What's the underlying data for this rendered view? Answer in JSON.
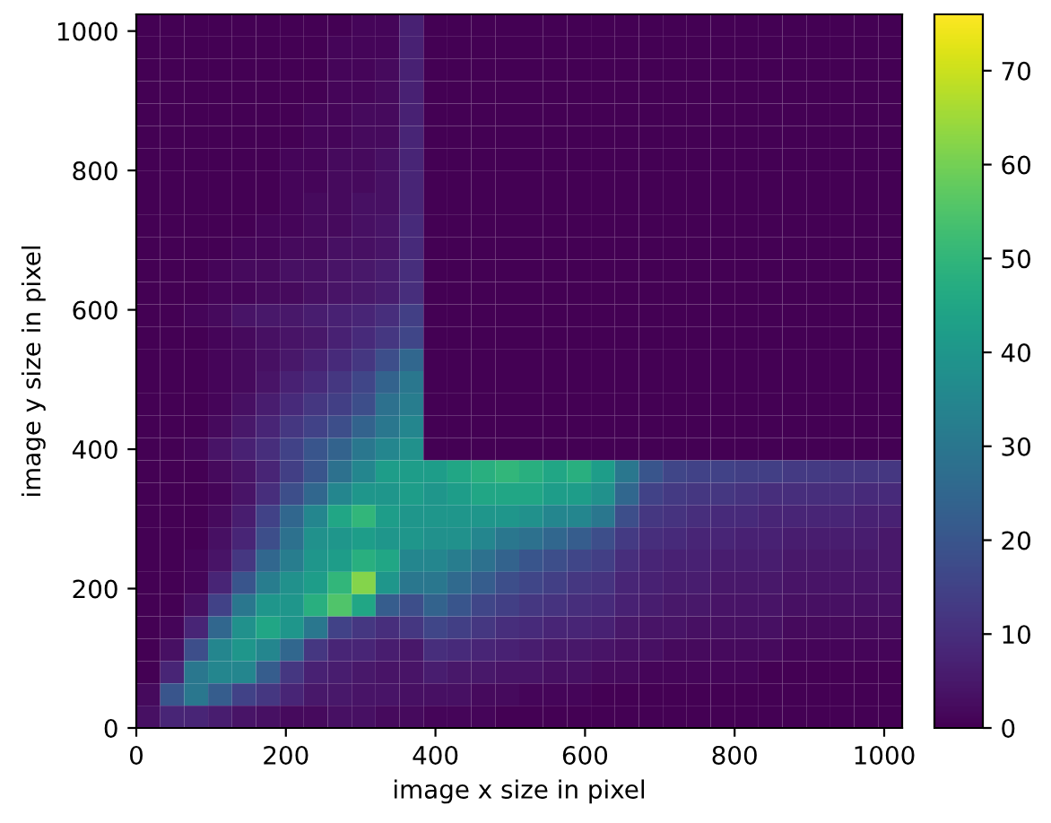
{
  "chart_data": {
    "type": "heatmap",
    "xlabel": "image x size in pixel",
    "ylabel": "image y size in pixel",
    "xlim": [
      0,
      1024
    ],
    "ylim": [
      0,
      1024
    ],
    "xticks": [
      0,
      200,
      400,
      600,
      800,
      1000
    ],
    "yticks": [
      0,
      200,
      400,
      600,
      800,
      1000
    ],
    "clim": [
      0,
      76
    ],
    "cticks": [
      0,
      10,
      20,
      30,
      40,
      50,
      60,
      70
    ],
    "cells": [
      [
        0,
        0,
        0,
        0,
        0,
        0,
        0,
        0,
        0,
        1,
        1,
        7,
        0,
        0,
        0,
        0,
        0,
        0,
        0,
        0,
        0,
        0,
        0,
        0,
        0,
        0,
        0,
        0,
        0,
        0,
        0,
        0
      ],
      [
        0,
        0,
        0,
        0,
        0,
        0,
        0,
        0,
        1,
        1,
        1,
        7,
        0,
        0,
        0,
        0,
        0,
        0,
        0,
        0,
        0,
        0,
        0,
        0,
        0,
        0,
        0,
        0,
        0,
        0,
        0,
        0
      ],
      [
        0,
        0,
        0,
        0,
        0,
        0,
        0,
        0,
        1,
        1,
        2,
        7,
        0,
        0,
        0,
        0,
        0,
        0,
        0,
        0,
        0,
        0,
        0,
        0,
        0,
        0,
        0,
        0,
        0,
        0,
        0,
        0
      ],
      [
        0,
        0,
        0,
        0,
        0,
        0,
        0,
        0,
        1,
        1,
        2,
        7,
        0,
        0,
        0,
        0,
        0,
        0,
        0,
        0,
        0,
        0,
        0,
        0,
        0,
        0,
        0,
        0,
        0,
        0,
        0,
        0
      ],
      [
        0,
        0,
        0,
        0,
        0,
        0,
        0,
        1,
        1,
        2,
        2,
        7,
        0,
        0,
        0,
        0,
        0,
        0,
        0,
        0,
        0,
        0,
        0,
        0,
        0,
        0,
        0,
        0,
        0,
        0,
        0,
        0
      ],
      [
        0,
        0,
        0,
        0,
        0,
        0,
        0,
        1,
        1,
        2,
        2,
        8,
        0,
        0,
        0,
        0,
        0,
        0,
        0,
        0,
        0,
        0,
        0,
        0,
        0,
        0,
        0,
        0,
        0,
        0,
        0,
        0
      ],
      [
        0,
        0,
        0,
        0,
        0,
        0,
        1,
        1,
        2,
        2,
        3,
        8,
        0,
        0,
        0,
        0,
        0,
        0,
        0,
        0,
        0,
        0,
        0,
        0,
        0,
        0,
        0,
        0,
        0,
        0,
        0,
        0
      ],
      [
        0,
        0,
        0,
        0,
        0,
        0,
        1,
        1,
        2,
        2,
        3,
        8,
        0,
        0,
        0,
        0,
        0,
        0,
        0,
        0,
        0,
        0,
        0,
        0,
        0,
        0,
        0,
        0,
        0,
        0,
        0,
        0
      ],
      [
        0,
        0,
        0,
        0,
        0,
        0,
        1,
        2,
        2,
        3,
        3,
        8,
        0,
        0,
        0,
        0,
        0,
        0,
        0,
        0,
        0,
        0,
        0,
        0,
        0,
        0,
        0,
        0,
        0,
        0,
        0,
        0
      ],
      [
        0,
        0,
        0,
        0,
        0,
        1,
        1,
        2,
        2,
        3,
        4,
        9,
        0,
        0,
        0,
        0,
        0,
        0,
        0,
        0,
        0,
        0,
        0,
        0,
        0,
        0,
        0,
        0,
        0,
        0,
        0,
        0
      ],
      [
        0,
        0,
        0,
        0,
        1,
        1,
        2,
        2,
        3,
        3,
        4,
        9,
        0,
        0,
        0,
        0,
        0,
        0,
        0,
        0,
        0,
        0,
        0,
        0,
        0,
        0,
        0,
        0,
        0,
        0,
        0,
        0
      ],
      [
        0,
        0,
        0,
        1,
        2,
        2,
        3,
        3,
        4,
        5,
        6,
        10,
        0,
        0,
        0,
        0,
        0,
        0,
        0,
        0,
        0,
        0,
        0,
        0,
        0,
        0,
        0,
        0,
        0,
        0,
        0,
        0
      ],
      [
        0,
        0,
        0,
        1,
        1,
        2,
        2,
        3,
        4,
        5,
        6,
        10,
        0,
        0,
        0,
        0,
        0,
        0,
        0,
        0,
        0,
        0,
        0,
        0,
        0,
        0,
        0,
        0,
        0,
        0,
        0,
        0
      ],
      [
        0,
        0,
        1,
        2,
        4,
        5,
        5,
        6,
        7,
        8,
        10,
        14,
        0,
        0,
        0,
        0,
        0,
        0,
        0,
        0,
        0,
        0,
        0,
        0,
        0,
        0,
        0,
        0,
        0,
        0,
        0,
        0
      ],
      [
        0,
        0,
        0,
        1,
        2,
        3,
        4,
        5,
        7,
        9,
        12,
        16,
        0,
        0,
        0,
        0,
        0,
        0,
        0,
        0,
        0,
        0,
        0,
        0,
        0,
        0,
        0,
        0,
        0,
        0,
        0,
        0
      ],
      [
        0,
        0,
        0,
        1,
        2,
        3,
        5,
        7,
        9,
        12,
        18,
        25,
        0,
        0,
        0,
        0,
        0,
        0,
        0,
        0,
        0,
        0,
        0,
        0,
        0,
        0,
        0,
        0,
        0,
        0,
        0,
        0
      ],
      [
        0,
        0,
        0,
        1,
        2,
        4,
        7,
        9,
        12,
        16,
        24,
        30,
        0,
        0,
        0,
        0,
        0,
        0,
        0,
        0,
        0,
        0,
        0,
        0,
        0,
        0,
        0,
        0,
        0,
        0,
        0,
        0
      ],
      [
        0,
        0,
        0,
        1,
        3,
        6,
        9,
        12,
        14,
        18,
        28,
        32,
        0,
        0,
        0,
        0,
        0,
        0,
        0,
        0,
        0,
        0,
        0,
        0,
        0,
        0,
        0,
        0,
        0,
        0,
        0,
        0
      ],
      [
        0,
        0,
        0,
        2,
        5,
        8,
        12,
        15,
        18,
        24,
        30,
        35,
        0,
        0,
        0,
        0,
        0,
        0,
        0,
        0,
        0,
        0,
        0,
        0,
        0,
        0,
        0,
        0,
        0,
        0,
        0,
        0
      ],
      [
        0,
        0,
        1,
        4,
        7,
        10,
        15,
        20,
        24,
        30,
        35,
        38,
        0,
        0,
        0,
        0,
        0,
        0,
        0,
        0,
        0,
        0,
        0,
        0,
        0,
        0,
        0,
        0,
        0,
        0,
        0,
        0
      ],
      [
        0,
        0,
        0,
        2,
        4,
        8,
        14,
        20,
        28,
        35,
        42,
        42,
        42,
        45,
        48,
        50,
        48,
        45,
        48,
        42,
        30,
        20,
        16,
        15,
        15,
        14,
        14,
        13,
        13,
        12,
        12,
        12
      ],
      [
        0,
        0,
        0,
        1,
        4,
        10,
        18,
        25,
        35,
        40,
        40,
        42,
        40,
        42,
        45,
        45,
        45,
        42,
        42,
        38,
        25,
        15,
        13,
        12,
        12,
        11,
        10,
        10,
        10,
        10,
        9,
        9
      ],
      [
        0,
        0,
        0,
        2,
        6,
        15,
        25,
        35,
        45,
        50,
        42,
        40,
        40,
        40,
        40,
        40,
        38,
        35,
        35,
        30,
        18,
        12,
        11,
        10,
        9,
        9,
        8,
        8,
        8,
        8,
        7,
        7
      ],
      [
        0,
        0,
        0,
        3,
        8,
        18,
        28,
        38,
        40,
        42,
        40,
        40,
        38,
        38,
        35,
        30,
        28,
        25,
        22,
        18,
        13,
        10,
        9,
        8,
        8,
        7,
        7,
        6,
        6,
        6,
        6,
        5
      ],
      [
        0,
        0,
        1,
        4,
        12,
        25,
        32,
        40,
        42,
        48,
        45,
        35,
        35,
        32,
        28,
        24,
        20,
        18,
        16,
        14,
        10,
        8,
        7,
        7,
        6,
        6,
        6,
        5,
        5,
        5,
        5,
        5
      ],
      [
        0,
        0,
        1,
        8,
        20,
        32,
        38,
        42,
        50,
        62,
        40,
        30,
        30,
        26,
        22,
        18,
        16,
        14,
        12,
        11,
        8,
        7,
        6,
        6,
        5,
        5,
        5,
        4,
        4,
        4,
        4,
        4
      ],
      [
        0,
        0,
        3,
        15,
        30,
        40,
        40,
        48,
        55,
        45,
        22,
        18,
        24,
        20,
        16,
        14,
        12,
        11,
        10,
        9,
        7,
        6,
        5,
        5,
        4,
        4,
        4,
        3,
        3,
        3,
        3,
        3
      ],
      [
        0,
        1,
        8,
        25,
        38,
        45,
        40,
        30,
        15,
        12,
        10,
        12,
        16,
        14,
        12,
        10,
        9,
        8,
        8,
        7,
        5,
        4,
        4,
        3,
        3,
        3,
        3,
        2,
        2,
        2,
        2,
        2
      ],
      [
        0,
        3,
        18,
        35,
        40,
        35,
        25,
        12,
        8,
        8,
        6,
        5,
        10,
        9,
        8,
        7,
        6,
        5,
        5,
        4,
        3,
        3,
        2,
        2,
        2,
        2,
        2,
        1,
        1,
        1,
        1,
        1
      ],
      [
        0,
        8,
        30,
        35,
        35,
        22,
        12,
        7,
        6,
        5,
        4,
        4,
        6,
        5,
        5,
        4,
        4,
        3,
        3,
        2,
        2,
        1,
        1,
        1,
        1,
        1,
        0,
        0,
        0,
        0,
        0,
        0
      ],
      [
        2,
        20,
        30,
        22,
        15,
        12,
        8,
        5,
        5,
        4,
        4,
        3,
        3,
        3,
        2,
        2,
        1,
        1,
        1,
        0,
        0,
        0,
        0,
        0,
        0,
        0,
        0,
        0,
        0,
        0,
        0,
        0
      ],
      [
        3,
        8,
        8,
        6,
        4,
        3,
        2,
        2,
        3,
        3,
        2,
        2,
        1,
        1,
        1,
        0,
        0,
        0,
        0,
        0,
        0,
        0,
        0,
        0,
        0,
        0,
        0,
        0,
        0,
        0,
        0,
        0
      ]
    ]
  }
}
